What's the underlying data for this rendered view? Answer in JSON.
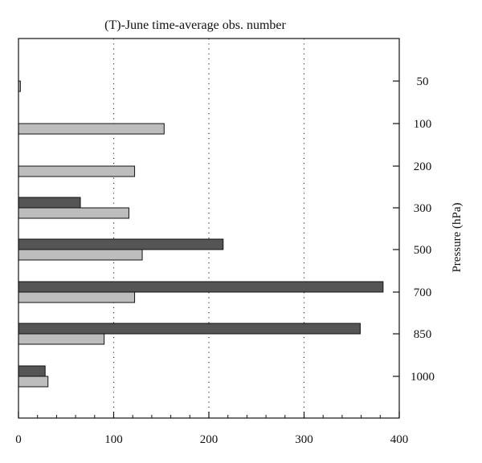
{
  "chart_data": {
    "type": "bar",
    "orientation": "horizontal",
    "title": "(T)-June time-average obs. number",
    "xlabel": "",
    "ylabel": "Pressure (hPa)",
    "xlim": [
      0,
      400
    ],
    "x_ticks": [
      0,
      100,
      200,
      300,
      400
    ],
    "categories": [
      "50",
      "100",
      "200",
      "300",
      "500",
      "700",
      "850",
      "1000"
    ],
    "grid": "vertical dotted at 100, 200, 300",
    "series": [
      {
        "color": "#555555",
        "values": [
          0,
          0,
          0,
          65,
          215,
          383,
          359,
          28
        ]
      },
      {
        "color": "#bdbdbd",
        "values": [
          2,
          153,
          122,
          116,
          130,
          122,
          90,
          31
        ]
      }
    ]
  }
}
